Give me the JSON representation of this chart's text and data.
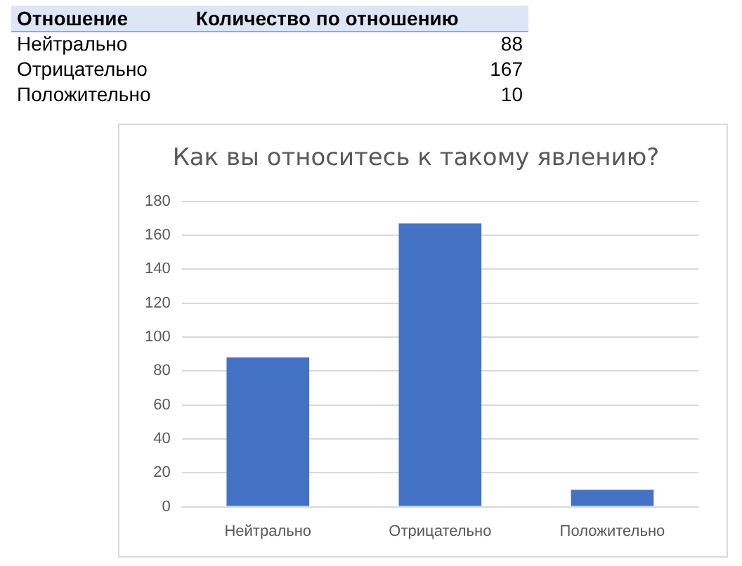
{
  "chart_data": [
    {
      "type": "other",
      "xlabel": "Отношение",
      "ylabel": "Количество по отношению",
      "categories": [
        "Нейтрально",
        "Отрицательно",
        "Положительно"
      ],
      "values": [
        88,
        167,
        10
      ],
      "value_labels": [
        "88",
        "167",
        "10"
      ]
    },
    {
      "type": "bar",
      "title": "Как вы относитесь к такому явлению?",
      "categories": [
        "Нейтрально",
        "Отрицательно",
        "Положительно"
      ],
      "values": [
        88,
        167,
        10
      ],
      "color": "#4472c4",
      "ylim": [
        0,
        180
      ],
      "yticks": [
        0,
        20,
        40,
        60,
        80,
        100,
        120,
        140,
        160,
        180
      ],
      "grid": "y"
    }
  ]
}
